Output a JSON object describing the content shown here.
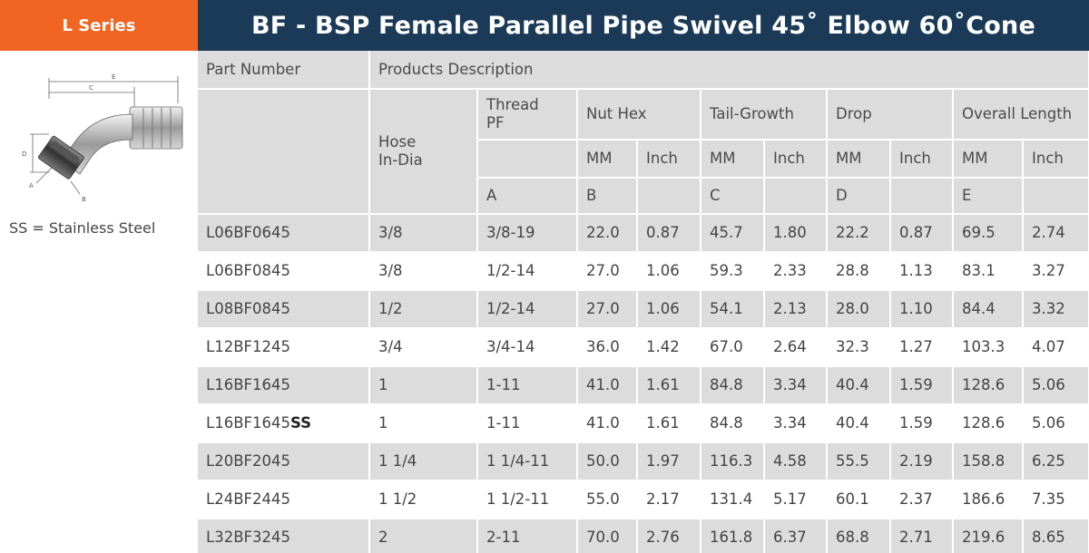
{
  "series_tab": "L Series",
  "title": "BF - BSP Female Parallel Pipe Swivel 45˚ Elbow 60˚Cone",
  "note": "SS = Stainless Steel",
  "diagram": {
    "labels": {
      "A": "A",
      "B": "B",
      "C": "C",
      "D": "D",
      "E": "E"
    }
  },
  "headers": {
    "part_number": "Part Number",
    "products_description": "Products Description",
    "hose_line1": "Hose",
    "hose_line2": "In-Dia",
    "thread_line1": "Thread",
    "thread_line2": "PF",
    "nut_hex": "Nut Hex",
    "tail_growth": "Tail-Growth",
    "drop": "Drop",
    "overall_length": "Overall Length",
    "mm": "MM",
    "inch": "Inch",
    "col_a": "A",
    "col_b": "B",
    "col_c": "C",
    "col_d": "D",
    "col_e": "E"
  },
  "rows": [
    {
      "part": "L06BF0645",
      "part_suffix": "",
      "hose": "3/8",
      "thread": "3/8-19",
      "nut_mm": "22.0",
      "nut_in": "0.87",
      "tail_mm": "45.7",
      "tail_in": "1.80",
      "drop_mm": "22.2",
      "drop_in": "0.87",
      "len_mm": "69.5",
      "len_in": "2.74"
    },
    {
      "part": "L06BF0845",
      "part_suffix": "",
      "hose": "3/8",
      "thread": "1/2-14",
      "nut_mm": "27.0",
      "nut_in": "1.06",
      "tail_mm": "59.3",
      "tail_in": "2.33",
      "drop_mm": "28.8",
      "drop_in": "1.13",
      "len_mm": "83.1",
      "len_in": "3.27"
    },
    {
      "part": "L08BF0845",
      "part_suffix": "",
      "hose": "1/2",
      "thread": "1/2-14",
      "nut_mm": "27.0",
      "nut_in": "1.06",
      "tail_mm": "54.1",
      "tail_in": "2.13",
      "drop_mm": "28.0",
      "drop_in": "1.10",
      "len_mm": "84.4",
      "len_in": "3.32"
    },
    {
      "part": "L12BF1245",
      "part_suffix": "",
      "hose": "3/4",
      "thread": "3/4-14",
      "nut_mm": "36.0",
      "nut_in": "1.42",
      "tail_mm": "67.0",
      "tail_in": "2.64",
      "drop_mm": "32.3",
      "drop_in": "1.27",
      "len_mm": "103.3",
      "len_in": "4.07"
    },
    {
      "part": "L16BF1645",
      "part_suffix": "",
      "hose": "1",
      "thread": "1-11",
      "nut_mm": "41.0",
      "nut_in": "1.61",
      "tail_mm": "84.8",
      "tail_in": "3.34",
      "drop_mm": "40.4",
      "drop_in": "1.59",
      "len_mm": "128.6",
      "len_in": "5.06"
    },
    {
      "part": "L16BF1645",
      "part_suffix": "SS",
      "hose": "1",
      "thread": "1-11",
      "nut_mm": "41.0",
      "nut_in": "1.61",
      "tail_mm": "84.8",
      "tail_in": "3.34",
      "drop_mm": "40.4",
      "drop_in": "1.59",
      "len_mm": "128.6",
      "len_in": "5.06"
    },
    {
      "part": "L20BF2045",
      "part_suffix": "",
      "hose": "1 1/4",
      "thread": "1 1/4-11",
      "nut_mm": "50.0",
      "nut_in": "1.97",
      "tail_mm": "116.3",
      "tail_in": "4.58",
      "drop_mm": "55.5",
      "drop_in": "2.19",
      "len_mm": "158.8",
      "len_in": "6.25"
    },
    {
      "part": "L24BF2445",
      "part_suffix": "",
      "hose": "1 1/2",
      "thread": "1 1/2-11",
      "nut_mm": "55.0",
      "nut_in": "2.17",
      "tail_mm": "131.4",
      "tail_in": "5.17",
      "drop_mm": "60.1",
      "drop_in": "2.37",
      "len_mm": "186.6",
      "len_in": "7.35"
    },
    {
      "part": "L32BF3245",
      "part_suffix": "",
      "hose": "2",
      "thread": "2-11",
      "nut_mm": "70.0",
      "nut_in": "2.76",
      "tail_mm": "161.8",
      "tail_in": "6.37",
      "drop_mm": "68.8",
      "drop_in": "2.71",
      "len_mm": "219.6",
      "len_in": "8.65"
    }
  ]
}
